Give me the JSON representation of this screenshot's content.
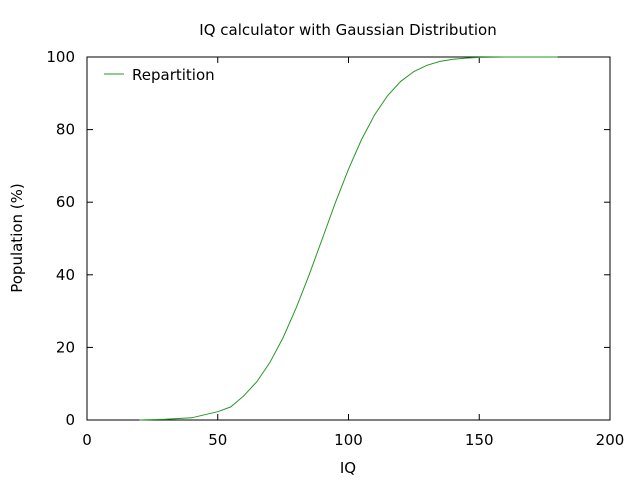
{
  "chart_data": {
    "type": "line",
    "title": "IQ calculator with Gaussian Distribution",
    "xlabel": "IQ",
    "ylabel": "Population (%)",
    "xlim": [
      0,
      200
    ],
    "ylim": [
      0,
      100
    ],
    "x_ticks": [
      0,
      50,
      100,
      150,
      200
    ],
    "y_ticks": [
      0,
      20,
      40,
      60,
      80,
      100
    ],
    "x_tick_labels": [
      "0",
      "50",
      "100",
      "150",
      "200"
    ],
    "y_tick_labels": [
      "0",
      "20",
      "40",
      "60",
      "80",
      "100"
    ],
    "grid": false,
    "legend_position": "top-left",
    "series": [
      {
        "name": "Repartition",
        "color": "#229922",
        "x": [
          20,
          30,
          40,
          50,
          55,
          60,
          65,
          70,
          75,
          80,
          85,
          90,
          95,
          100,
          105,
          110,
          115,
          120,
          125,
          130,
          135,
          140,
          145,
          150,
          160,
          170,
          180
        ],
        "values": [
          0.0,
          0.2,
          0.6,
          2.3,
          3.6,
          6.7,
          10.6,
          15.9,
          22.7,
          30.9,
          40.1,
          50.0,
          59.9,
          69.1,
          77.3,
          84.1,
          89.4,
          93.3,
          96.0,
          97.7,
          98.8,
          99.4,
          99.7,
          99.9,
          100.0,
          100.0,
          100.0
        ]
      }
    ]
  }
}
